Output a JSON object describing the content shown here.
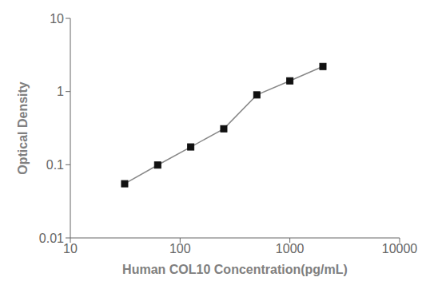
{
  "chart_data": {
    "type": "line",
    "x": [
      31.25,
      62.5,
      125,
      250,
      500,
      1000,
      2000
    ],
    "values": [
      0.055,
      0.099,
      0.175,
      0.31,
      0.9,
      1.4,
      2.2
    ],
    "xlabel": "Human COL10 Concentration(pg/mL)",
    "ylabel": "Optical Density",
    "xlim": [
      10,
      10000
    ],
    "ylim": [
      0.01,
      10
    ],
    "xticks": [
      10,
      100,
      1000,
      10000
    ],
    "yticks": [
      0.01,
      0.1,
      1,
      10
    ],
    "log": true,
    "grid": false,
    "color": "#888888",
    "colors": [
      "#111111",
      "#111111",
      "#111111",
      "#111111",
      "#111111",
      "#111111",
      "#111111"
    ],
    "marker": "square",
    "line_style": "solid"
  }
}
